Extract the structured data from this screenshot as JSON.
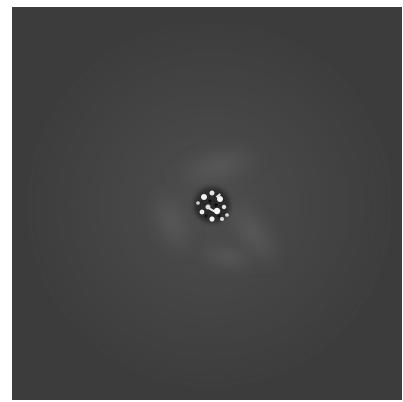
{
  "image": {
    "subject": "grayscale-micrograph",
    "colors": {
      "background": "#3c3c3c",
      "halo": "#4a4a4a",
      "lobes": "#575757",
      "core_bright": "#f2f2f2",
      "core_dark": "#0e0e0e"
    }
  }
}
